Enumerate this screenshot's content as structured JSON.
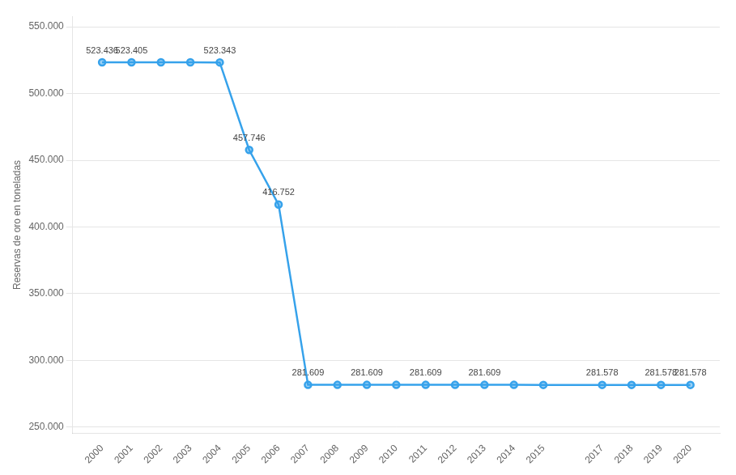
{
  "chart_data": {
    "type": "line",
    "y_label": "Reservas de oro en toneladas",
    "x": [
      2000,
      2001,
      2002,
      2003,
      2004,
      2005,
      2006,
      2007,
      2008,
      2009,
      2010,
      2011,
      2012,
      2013,
      2014,
      2015,
      2017,
      2018,
      2019,
      2020
    ],
    "values": [
      523436,
      523405,
      523405,
      523405,
      523343,
      457746,
      416752,
      281609,
      281609,
      281609,
      281609,
      281609,
      281609,
      281609,
      281609,
      281578,
      281578,
      281578,
      281578,
      281578
    ],
    "xlim": [
      1999,
      2021
    ],
    "xticks": [
      2000,
      2001,
      2002,
      2003,
      2004,
      2005,
      2006,
      2007,
      2008,
      2009,
      2010,
      2011,
      2012,
      2013,
      2014,
      2015,
      2017,
      2018,
      2019,
      2020
    ],
    "ylim": [
      245000,
      558000
    ],
    "yticks": [
      {
        "value": 250000,
        "label": "250.000"
      },
      {
        "value": 300000,
        "label": "300.000"
      },
      {
        "value": 350000,
        "label": "350.000"
      },
      {
        "value": 400000,
        "label": "400.000"
      },
      {
        "value": 450000,
        "label": "450.000"
      },
      {
        "value": 500000,
        "label": "500.000"
      },
      {
        "value": 550000,
        "label": "550.000"
      }
    ],
    "grid": "y",
    "marker": "circle",
    "annotations": [
      {
        "x": 2000,
        "y": 523436,
        "label": "523.436"
      },
      {
        "x": 2001,
        "y": 523405,
        "label": "523.405"
      },
      {
        "x": 2004,
        "y": 523343,
        "label": "523.343"
      },
      {
        "x": 2005,
        "y": 457746,
        "label": "457.746"
      },
      {
        "x": 2006,
        "y": 416752,
        "label": "416.752"
      },
      {
        "x": 2007,
        "y": 281609,
        "label": "281.609"
      },
      {
        "x": 2009,
        "y": 281609,
        "label": "281.609"
      },
      {
        "x": 2011,
        "y": 281609,
        "label": "281.609"
      },
      {
        "x": 2013,
        "y": 281609,
        "label": "281.609"
      },
      {
        "x": 2017,
        "y": 281578,
        "label": "281.578"
      },
      {
        "x": 2019,
        "y": 281578,
        "label": "281.578"
      },
      {
        "x": 2020,
        "y": 281578,
        "label": "281.578"
      }
    ]
  }
}
